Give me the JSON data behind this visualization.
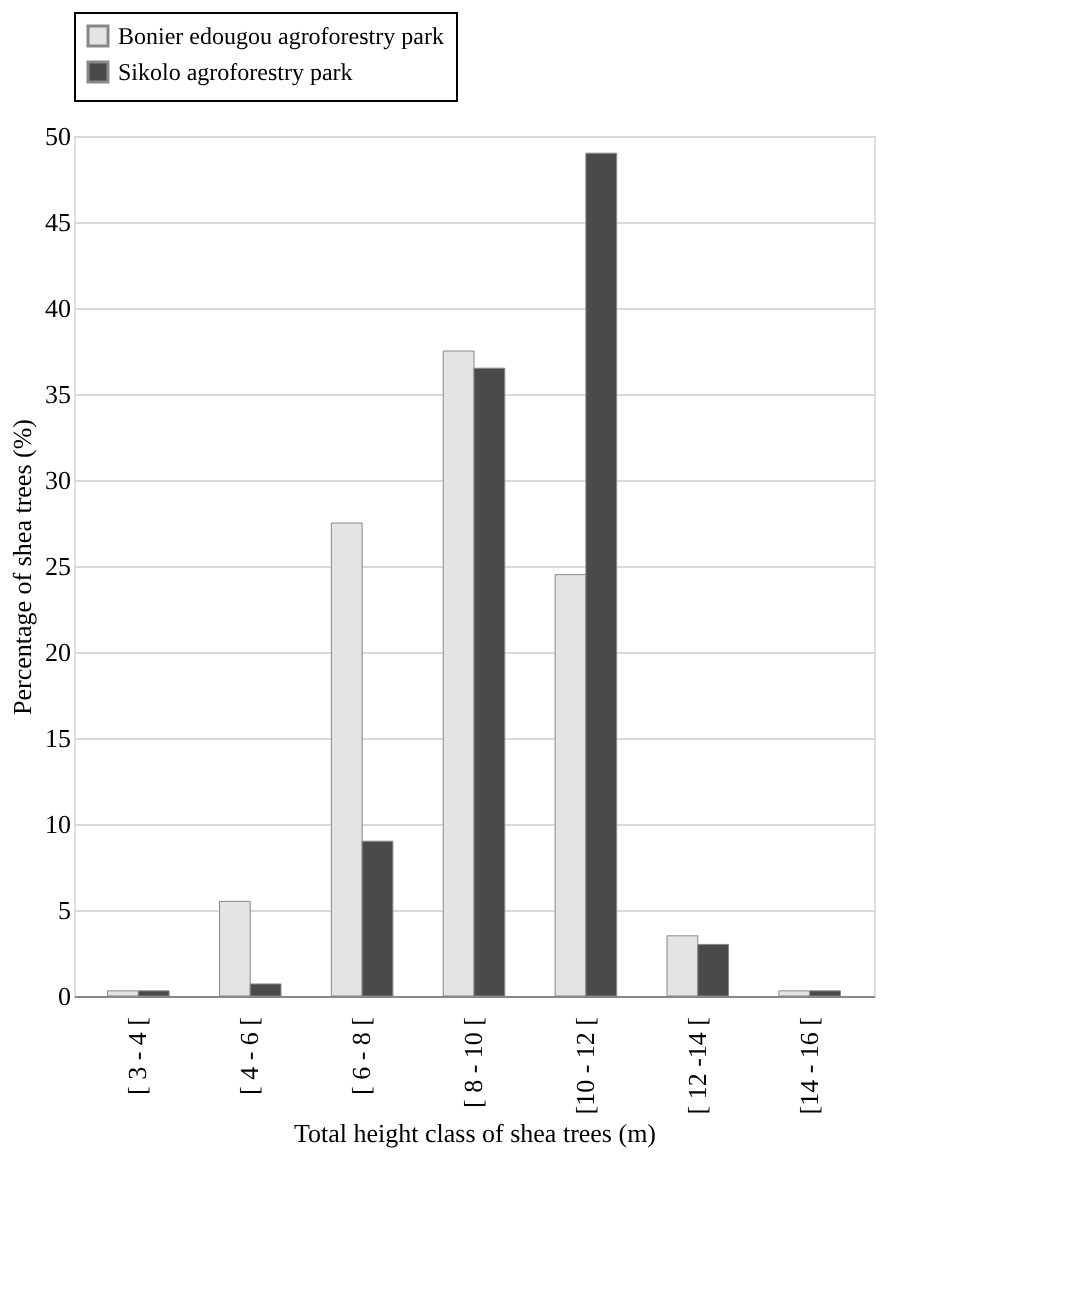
{
  "chart_data": {
    "type": "bar",
    "xlabel": "Total height class of shea trees (m)",
    "ylabel": "Percentage of shea trees (%)",
    "categories": [
      "[ 3 - 4 [",
      "[ 4 - 6 [",
      "[ 6 - 8 [",
      "[ 8 - 10 [",
      "[10 - 12 [",
      "[ 12 -14 [",
      "[14 - 16 ["
    ],
    "series": [
      {
        "name": "Bonier edougou agroforestry park",
        "color": "#e4e4e4",
        "values": [
          0.3,
          5.5,
          27.5,
          37.5,
          24.5,
          3.5,
          0.3
        ]
      },
      {
        "name": "Sikolo agroforestry park",
        "color": "#4a4a4a",
        "values": [
          0.3,
          0.7,
          9,
          36.5,
          49,
          3,
          0.3
        ]
      }
    ],
    "ylim": [
      0,
      50
    ],
    "yticks": [
      0,
      5,
      10,
      15,
      20,
      25,
      30,
      35,
      40,
      45,
      50
    ],
    "grid": "y",
    "legend": "top"
  }
}
